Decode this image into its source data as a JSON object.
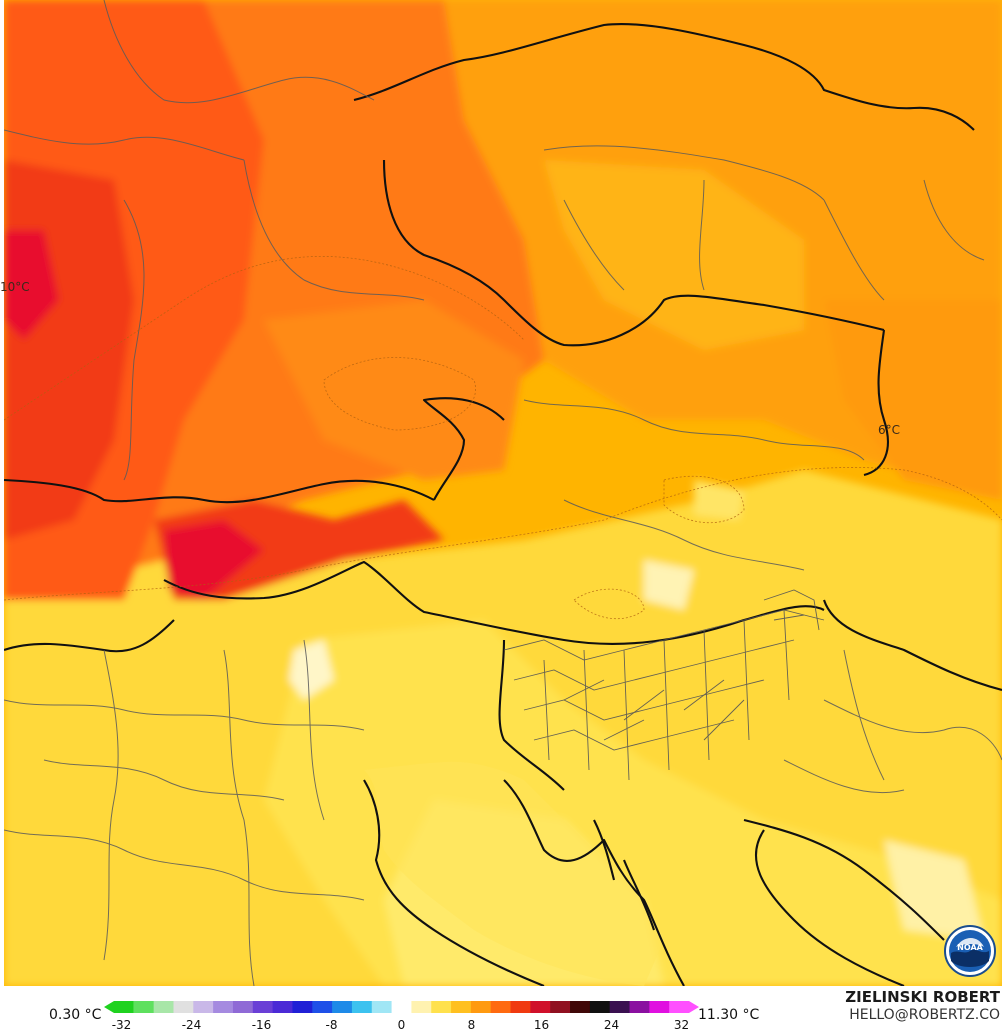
{
  "map": {
    "contour_labels": [
      {
        "id": "label-west",
        "text": "10°C"
      },
      {
        "id": "label-east",
        "text": "6°C"
      }
    ]
  },
  "legend": {
    "min_value": "0.30 °C",
    "max_value": "11.30 °C",
    "ticks": [
      "-32",
      "-24",
      "-16",
      "-8",
      "0",
      "8",
      "16",
      "24",
      "32"
    ],
    "scale_min": -34,
    "scale_max": 34,
    "colors": [
      "#1fd21f",
      "#5ee05e",
      "#a8e6a8",
      "#e0e0e0",
      "#c9b8e8",
      "#a58ae0",
      "#8f6ad6",
      "#6a3fd6",
      "#4b2ad6",
      "#2020d6",
      "#1e50e8",
      "#1e8ae8",
      "#3cc2ef",
      "#a0e6f5",
      "#ffffff",
      "#fff2b0",
      "#ffe14d",
      "#ffc020",
      "#ff9a10",
      "#ff6a10",
      "#f03a10",
      "#d0102a",
      "#901020",
      "#400808",
      "#101010",
      "#3a1050",
      "#8a10a0",
      "#e010e0",
      "#ff50ff"
    ]
  },
  "credits": {
    "name": "ZIELINSKI ROBERT",
    "email": "HELLO@ROBERTZ.CO"
  },
  "logo": {
    "text": "NOAA",
    "icon": "noaa-logo-icon"
  }
}
